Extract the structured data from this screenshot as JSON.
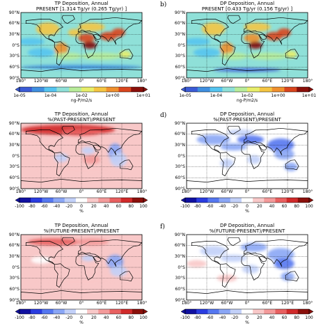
{
  "panels": [
    {
      "id": "a",
      "letter": "",
      "title1": "TP Deposition, Annual",
      "title2": "PRESENT [1.314 Tg/yr (0.265 Tg/yr) ]",
      "kind": "abs",
      "unit": "ng-P/m2/s",
      "ticks": [
        "1e-05",
        "1e-04",
        "1e-02",
        "1e+00",
        "1e+01"
      ]
    },
    {
      "id": "b",
      "letter": "b)",
      "title1": "DP Deposition, Annual",
      "title2": "PRESENT [0.433 Tg/yr (0.156 Tg/yr) ]",
      "kind": "abs",
      "unit": "ng-P/m2/s",
      "ticks": [
        "1e-05",
        "1e-04",
        "1e-02",
        "1e+00",
        "1e+01"
      ]
    },
    {
      "id": "c",
      "letter": "",
      "title1": "TP Deposition, Annual",
      "title2": "%(PAST-PRESENT)/PRESENT",
      "kind": "pct",
      "unit": "%",
      "ticks": [
        "-100",
        "-80",
        "-60",
        "-40",
        "-20",
        "0",
        "20",
        "40",
        "60",
        "80",
        "100"
      ]
    },
    {
      "id": "d",
      "letter": "d)",
      "title1": "DP Deposition, Annual",
      "title2": "%(PAST-PRESENT)/PRESENT",
      "kind": "pct",
      "unit": "%",
      "ticks": [
        "-100",
        "-80",
        "-60",
        "-40",
        "-20",
        "0",
        "20",
        "40",
        "60",
        "80",
        "100"
      ]
    },
    {
      "id": "e",
      "letter": "",
      "title1": "TP Deposition, Annual",
      "title2": "%(FUTURE-PRESENT)/PRESENT",
      "kind": "pct",
      "unit": "%",
      "ticks": [
        "-100",
        "-80",
        "-60",
        "-40",
        "-20",
        "0",
        "20",
        "40",
        "60",
        "80",
        "100"
      ]
    },
    {
      "id": "f",
      "letter": "f)",
      "title1": "DP Deposition, Annual",
      "title2": "%(FUTURE-PRESENT)/PRESENT",
      "kind": "pct",
      "unit": "%",
      "ticks": [
        "-100",
        "-80",
        "-60",
        "-40",
        "-20",
        "0",
        "20",
        "40",
        "60",
        "80",
        "100"
      ]
    }
  ],
  "lat_labels": [
    "90°N",
    "60°N",
    "30°N",
    "0°S",
    "30°S",
    "60°S",
    "90°S"
  ],
  "lon_labels": [
    "180°",
    "120°W",
    "60°W",
    "0°",
    "60°E",
    "120°E",
    "180°"
  ],
  "colors": {
    "abs_scale": [
      "#3b5bd6",
      "#3f8fe0",
      "#55c4f0",
      "#8fe0d8",
      "#b8ec9a",
      "#e8ee6a",
      "#f5c542",
      "#f0902e",
      "#d9451e",
      "#8a0f0a"
    ],
    "pct_scale": [
      "#1010a0",
      "#2a3ce0",
      "#5577f0",
      "#8aa6f5",
      "#c2d0f8",
      "#ffffff",
      "#f8c8c8",
      "#f39a9a",
      "#e86060",
      "#d02a2a",
      "#8a0f0a"
    ]
  }
}
